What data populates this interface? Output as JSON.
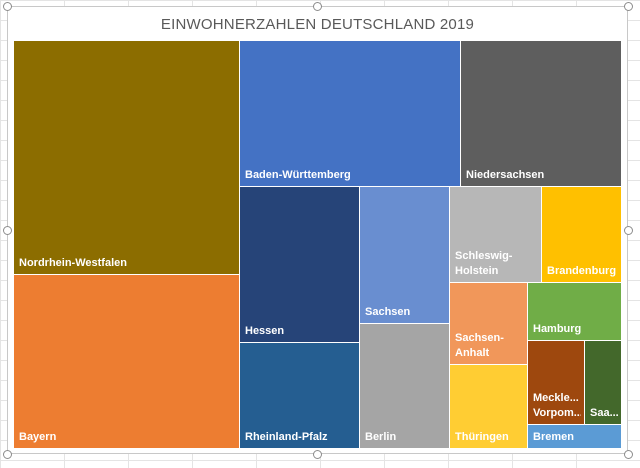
{
  "chart_data": {
    "type": "treemap",
    "title": "EINWOHNERZAHLEN DEUTSCHLAND 2019",
    "items": [
      {
        "label": "Nordrhein-Westfalen",
        "color": "#8C6D00"
      },
      {
        "label": "Bayern",
        "color": "#ED7D31"
      },
      {
        "label": "Baden-Württemberg",
        "color": "#4472C4"
      },
      {
        "label": "Niedersachsen",
        "color": "#5E5E5E"
      },
      {
        "label": "Hessen",
        "color": "#264478"
      },
      {
        "label": "Rheinland-Pfalz",
        "color": "#255E91"
      },
      {
        "label": "Sachsen",
        "color": "#698ED0"
      },
      {
        "label": "Berlin",
        "color": "#A5A5A5"
      },
      {
        "label": "Schleswig-Holstein",
        "color": "#B7B7B7"
      },
      {
        "label": "Brandenburg",
        "color": "#FFC000"
      },
      {
        "label": "Sachsen-Anhalt",
        "color": "#F1975A"
      },
      {
        "label": "Thüringen",
        "color": "#FFCD33"
      },
      {
        "label": "Hamburg",
        "color": "#70AD47"
      },
      {
        "label": "Meckle... Vorpom...",
        "color": "#9E480E"
      },
      {
        "label": "Saa...",
        "color": "#43682B"
      },
      {
        "label": "Bremen",
        "color": "#5B9BD5"
      }
    ]
  }
}
